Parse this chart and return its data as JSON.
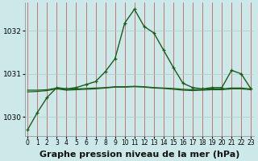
{
  "xlabel": "Graphe pression niveau de la mer (hPa)",
  "hours": [
    0,
    1,
    2,
    3,
    4,
    5,
    6,
    7,
    8,
    9,
    10,
    11,
    12,
    13,
    14,
    15,
    16,
    17,
    18,
    19,
    20,
    21,
    22,
    23
  ],
  "line_main": [
    1029.7,
    1030.1,
    1030.45,
    1030.68,
    1030.65,
    1030.68,
    1030.75,
    1030.82,
    1031.05,
    1031.35,
    1032.18,
    1032.5,
    1032.1,
    1031.95,
    1031.55,
    1031.15,
    1030.78,
    1030.68,
    1030.65,
    1030.68,
    1030.68,
    1031.08,
    1031.0,
    1030.65
  ],
  "line_flat1": [
    1030.62,
    1030.62,
    1030.63,
    1030.67,
    1030.64,
    1030.65,
    1030.66,
    1030.67,
    1030.68,
    1030.7,
    1030.7,
    1030.71,
    1030.7,
    1030.68,
    1030.67,
    1030.66,
    1030.64,
    1030.63,
    1030.64,
    1030.65,
    1030.65,
    1030.67,
    1030.67,
    1030.65
  ],
  "line_flat2": [
    1030.58,
    1030.59,
    1030.61,
    1030.65,
    1030.62,
    1030.63,
    1030.64,
    1030.65,
    1030.67,
    1030.69,
    1030.69,
    1030.7,
    1030.69,
    1030.67,
    1030.66,
    1030.64,
    1030.62,
    1030.61,
    1030.62,
    1030.63,
    1030.63,
    1030.65,
    1030.65,
    1030.63
  ],
  "line_color": "#1a5c1a",
  "bg_color": "#cce8e8",
  "grid_color_v": "#cc4444",
  "grid_color_h": "#aacccc",
  "ylim": [
    1029.55,
    1032.65
  ],
  "yticks": [
    1030,
    1031,
    1032
  ],
  "tick_fontsize": 6.5,
  "xlabel_fontsize": 8
}
